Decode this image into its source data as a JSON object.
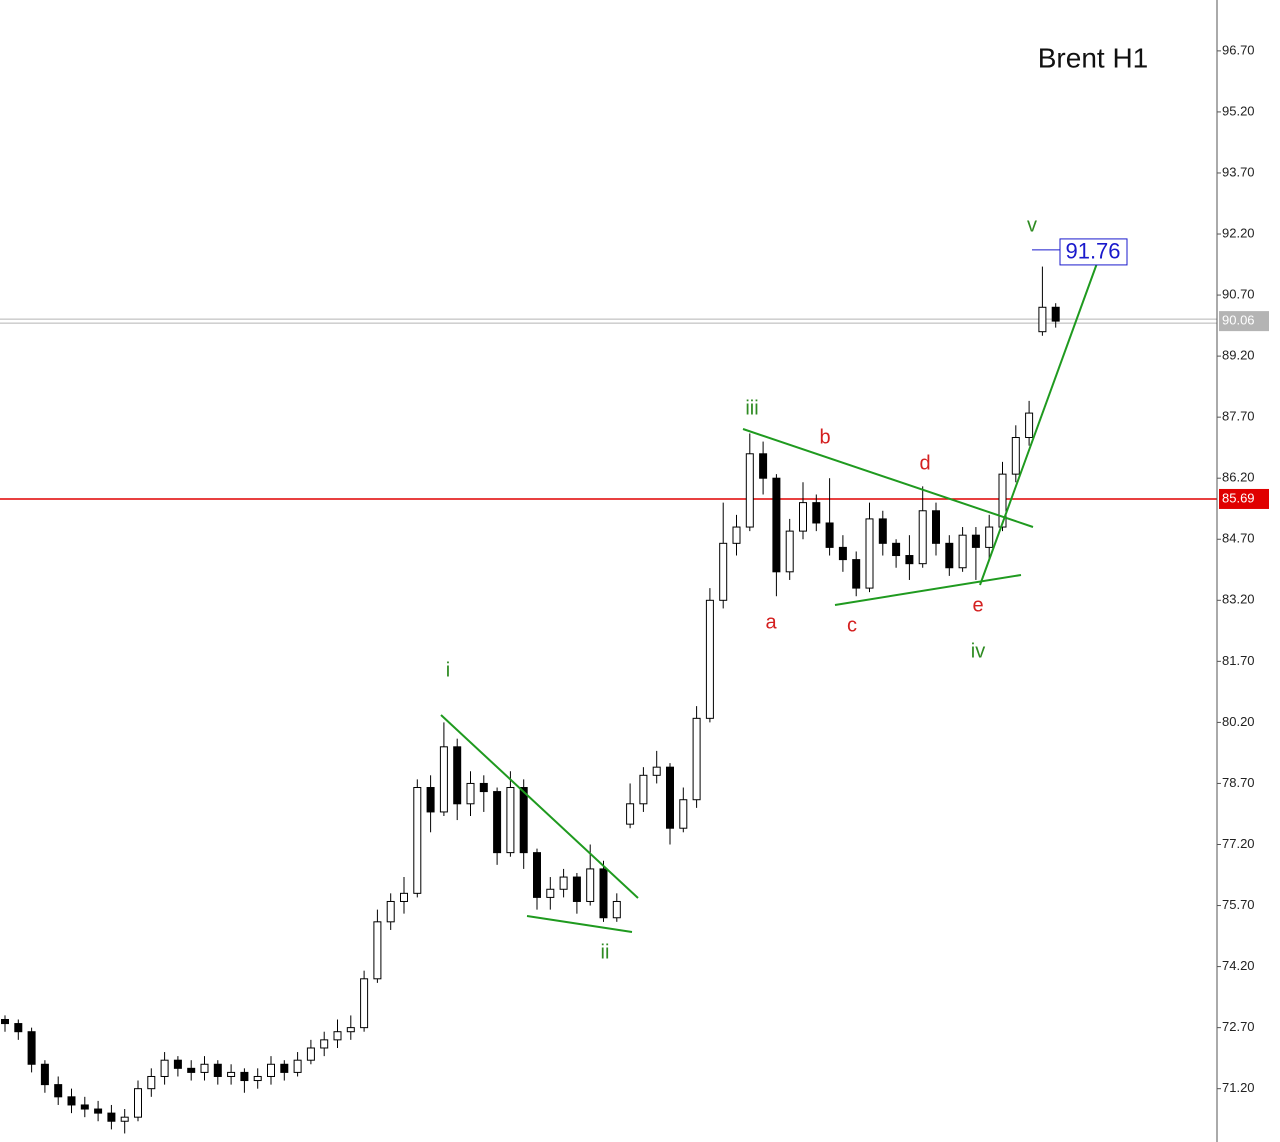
{
  "chart_data": {
    "type": "candlestick",
    "title": "Brent H1",
    "ylim": [
      69.89,
      97.95
    ],
    "yticks": [
      {
        "value": 96.7,
        "label": "96.70"
      },
      {
        "value": 95.2,
        "label": "95.20"
      },
      {
        "value": 93.7,
        "label": "93.70"
      },
      {
        "value": 92.2,
        "label": "92.20"
      },
      {
        "value": 90.7,
        "label": "90.70"
      },
      {
        "value": 89.2,
        "label": "89.20"
      },
      {
        "value": 87.7,
        "label": "87.70"
      },
      {
        "value": 86.2,
        "label": "86.20"
      },
      {
        "value": 84.7,
        "label": "84.70"
      },
      {
        "value": 83.2,
        "label": "83.20"
      },
      {
        "value": 81.7,
        "label": "81.70"
      },
      {
        "value": 80.2,
        "label": "80.20"
      },
      {
        "value": 78.7,
        "label": "78.70"
      },
      {
        "value": 77.2,
        "label": "77.20"
      },
      {
        "value": 75.7,
        "label": "75.70"
      },
      {
        "value": 74.2,
        "label": "74.20"
      },
      {
        "value": 72.7,
        "label": "72.70"
      },
      {
        "value": 71.2,
        "label": "71.20"
      }
    ],
    "up_color": "#ffffff",
    "down_color": "#000000",
    "open": [
      72.9,
      72.8,
      72.6,
      71.8,
      71.3,
      71.0,
      70.8,
      70.7,
      70.6,
      70.4,
      70.5,
      71.2,
      71.5,
      71.9,
      71.7,
      71.6,
      71.8,
      71.5,
      71.6,
      71.4,
      71.5,
      71.8,
      71.6,
      71.9,
      72.2,
      72.4,
      72.6,
      72.7,
      73.9,
      75.3,
      75.8,
      76.0,
      78.6,
      78.0,
      79.6,
      78.2,
      78.7,
      78.5,
      77.0,
      78.6,
      77.0,
      75.9,
      76.1,
      76.4,
      75.8,
      76.6,
      75.4,
      77.7,
      78.2,
      78.9,
      79.1,
      77.6,
      78.3,
      80.3,
      83.2,
      84.6,
      85.0,
      86.8,
      86.2,
      83.9,
      84.9,
      85.6,
      85.1,
      84.5,
      84.2,
      83.5,
      85.2,
      84.6,
      84.3,
      84.1,
      85.4,
      84.6,
      84.0,
      84.8,
      84.5,
      85.0,
      86.3,
      87.2,
      89.8,
      90.4
    ],
    "high": [
      73.0,
      72.9,
      72.7,
      71.9,
      71.5,
      71.2,
      71.0,
      70.9,
      70.8,
      70.7,
      71.4,
      71.7,
      72.1,
      72.0,
      71.9,
      72.0,
      71.9,
      71.8,
      71.7,
      71.7,
      72.0,
      71.9,
      72.1,
      72.4,
      72.6,
      72.9,
      73.0,
      74.1,
      75.6,
      76.0,
      76.4,
      78.8,
      78.9,
      80.2,
      79.8,
      79.0,
      78.9,
      78.6,
      79.0,
      78.8,
      77.1,
      76.4,
      76.6,
      76.5,
      77.2,
      76.8,
      76.0,
      78.7,
      79.1,
      79.5,
      79.2,
      78.6,
      80.6,
      83.5,
      85.6,
      85.3,
      87.3,
      87.1,
      86.3,
      85.2,
      86.1,
      85.8,
      86.2,
      84.8,
      84.4,
      85.6,
      85.4,
      84.7,
      84.8,
      86.0,
      85.6,
      84.8,
      85.0,
      85.0,
      85.3,
      86.6,
      87.5,
      88.1,
      91.4,
      90.5
    ],
    "low": [
      72.6,
      72.4,
      71.6,
      71.1,
      70.8,
      70.6,
      70.5,
      70.4,
      70.2,
      70.1,
      70.4,
      71.0,
      71.3,
      71.5,
      71.4,
      71.4,
      71.3,
      71.3,
      71.1,
      71.2,
      71.3,
      71.4,
      71.5,
      71.8,
      72.0,
      72.2,
      72.4,
      72.6,
      73.8,
      75.1,
      75.5,
      75.9,
      77.5,
      77.9,
      77.8,
      77.9,
      78.0,
      76.7,
      76.9,
      76.6,
      75.6,
      75.6,
      75.9,
      75.5,
      75.7,
      75.3,
      75.3,
      77.6,
      78.0,
      78.7,
      77.2,
      77.5,
      78.1,
      80.2,
      83.0,
      84.3,
      84.9,
      85.8,
      83.3,
      83.7,
      84.7,
      84.9,
      84.3,
      83.9,
      83.3,
      83.4,
      84.3,
      84.0,
      83.7,
      84.0,
      84.3,
      83.8,
      83.9,
      83.7,
      84.2,
      84.9,
      86.1,
      87.0,
      89.7,
      89.9
    ],
    "close": [
      72.8,
      72.6,
      71.8,
      71.3,
      71.0,
      70.8,
      70.7,
      70.6,
      70.4,
      70.5,
      71.2,
      71.5,
      71.9,
      71.7,
      71.6,
      71.8,
      71.5,
      71.6,
      71.4,
      71.5,
      71.8,
      71.6,
      71.9,
      72.2,
      72.4,
      72.6,
      72.7,
      73.9,
      75.3,
      75.8,
      76.0,
      78.6,
      78.0,
      79.6,
      78.2,
      78.7,
      78.5,
      77.0,
      78.6,
      77.0,
      75.9,
      76.1,
      76.4,
      75.8,
      76.6,
      75.4,
      75.8,
      78.2,
      78.9,
      79.1,
      77.6,
      78.3,
      80.3,
      83.2,
      84.6,
      85.0,
      86.8,
      86.2,
      83.9,
      84.9,
      85.6,
      85.1,
      84.5,
      84.2,
      83.5,
      85.2,
      84.6,
      84.3,
      84.1,
      85.4,
      84.6,
      84.0,
      84.8,
      84.5,
      85.0,
      86.3,
      87.2,
      87.8,
      90.4,
      90.06
    ],
    "hlines": [
      {
        "value": 85.69,
        "color": "#e00000"
      },
      {
        "value": 90.06,
        "color": "#b4b4b4"
      }
    ],
    "target": {
      "value": 91.76,
      "color": "#1a1acc"
    },
    "annotations": [
      {
        "text": "i",
        "color": "#2e8b22"
      },
      {
        "text": "ii",
        "color": "#2e8b22"
      },
      {
        "text": "iii",
        "color": "#2e8b22"
      },
      {
        "text": "iv",
        "color": "#2e8b22"
      },
      {
        "text": "v",
        "color": "#2e8b22"
      },
      {
        "text": "a",
        "color": "#d42020"
      },
      {
        "text": "b",
        "color": "#d42020"
      },
      {
        "text": "c",
        "color": "#d42020"
      },
      {
        "text": "d",
        "color": "#d42020"
      },
      {
        "text": "e",
        "color": "#d42020"
      }
    ]
  }
}
